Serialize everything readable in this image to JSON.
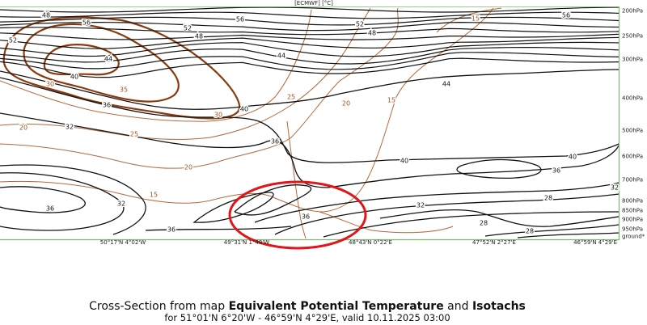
{
  "header": {
    "title": "[ECMWF] [°C]"
  },
  "pressure_levels": [
    "200hPa",
    "250hPa",
    "300hPa",
    "400hPa",
    "500hPa",
    "600hPa",
    "700hPa",
    "800hPa",
    "850hPa",
    "900hPa",
    "950hPa",
    "ground*"
  ],
  "locations": [
    "50°17'N 4°02'W",
    "49°31'N 1°48'W",
    "48°43'N 0°22'E",
    "47°52'N 2°27'E",
    "46°59'N 4°29'E"
  ],
  "theta_e_labels": [
    "48",
    "56",
    "52",
    "52",
    "48",
    "56",
    "52",
    "48",
    "56",
    "44",
    "44",
    "40",
    "36",
    "40",
    "32",
    "36",
    "44",
    "40",
    "40",
    "36",
    "32",
    "32",
    "36",
    "28",
    "28",
    "32",
    "36",
    "28",
    "36"
  ],
  "isotach_labels": [
    "15",
    "30",
    "35",
    "20",
    "25",
    "20",
    "25",
    "20",
    "15",
    "15",
    "30"
  ],
  "caption": {
    "line1": [
      "Cross-Section from map ",
      "Equivalent Potential Temperature",
      " and ",
      "Isotachs"
    ],
    "line2": "for 51°01'N 6°20'W - 46°59'N 4°29'E, valid 10.11.2025 03:00"
  }
}
